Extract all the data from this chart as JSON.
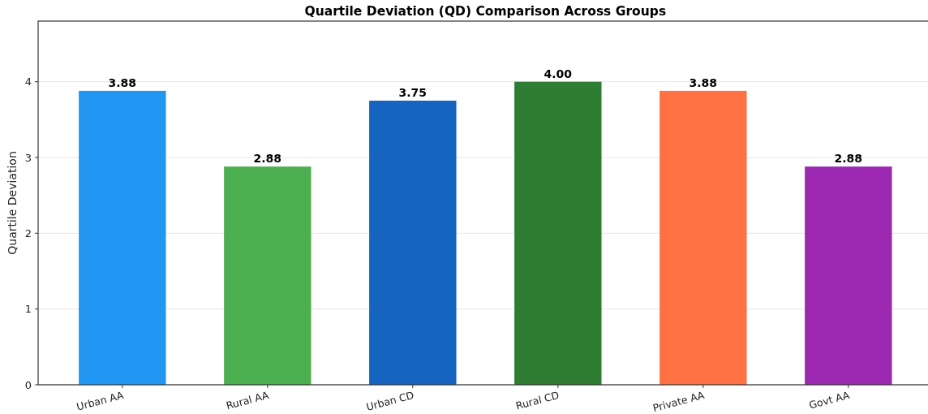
{
  "chart_data": {
    "type": "bar",
    "title": "Quartile Deviation (QD) Comparison Across Groups",
    "ylabel": "Quartile Deviation",
    "categories": [
      "Urban AA",
      "Rural AA",
      "Urban CD",
      "Rural CD",
      "Private AA",
      "Govt AA"
    ],
    "values": [
      3.88,
      2.88,
      3.75,
      4.0,
      3.88,
      2.88
    ],
    "colors": [
      "#2196f3",
      "#4caf50",
      "#1565c0",
      "#2e7d32",
      "#ff7043",
      "#9c27b0"
    ],
    "value_labels": [
      "3.88",
      "2.88",
      "3.75",
      "4.00",
      "3.88",
      "2.88"
    ],
    "ylim": [
      0,
      4.8
    ],
    "yticks": [
      0,
      1,
      2,
      3,
      4
    ],
    "grid": "y"
  }
}
